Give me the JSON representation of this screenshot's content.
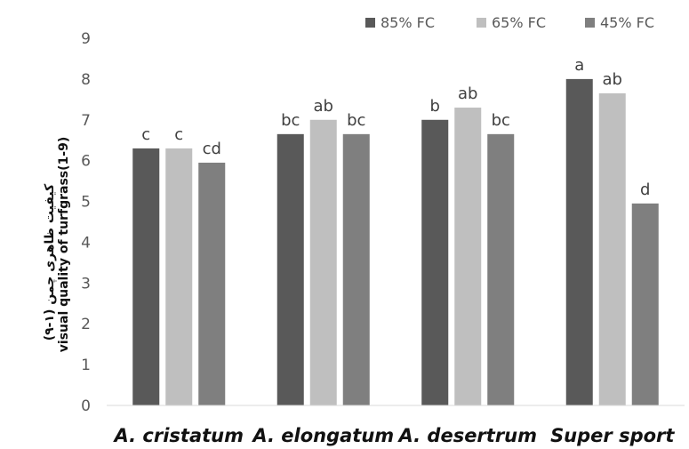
{
  "chart_data": {
    "type": "bar",
    "categories": [
      "A. cristatum",
      "A. elongatum",
      "A. desertrum",
      "Super sport"
    ],
    "series": [
      {
        "name": "85% FC",
        "color": "#595959",
        "values": [
          6.3,
          6.65,
          7.0,
          8.0
        ],
        "labels": [
          "c",
          "bc",
          "b",
          "a"
        ]
      },
      {
        "name": "65% FC",
        "color": "#bfbfbf",
        "values": [
          6.3,
          7.0,
          7.3,
          7.65
        ],
        "labels": [
          "c",
          "ab",
          "ab",
          "ab"
        ]
      },
      {
        "name": "45% FC",
        "color": "#7f7f7f",
        "values": [
          5.95,
          6.65,
          6.65,
          4.95
        ],
        "labels": [
          "cd",
          "bc",
          "bc",
          "d"
        ]
      }
    ],
    "ylabel_fa": "کیفیت ظاهری چمن (۱-۹)",
    "ylabel_en": "visual quality of turfgrass(1-9)",
    "ylim": [
      0,
      9
    ],
    "yticks": [
      "0",
      "1",
      "2",
      "3",
      "4",
      "5",
      "6",
      "7",
      "8",
      "9"
    ],
    "grid": false,
    "legend_position": "top-right"
  }
}
